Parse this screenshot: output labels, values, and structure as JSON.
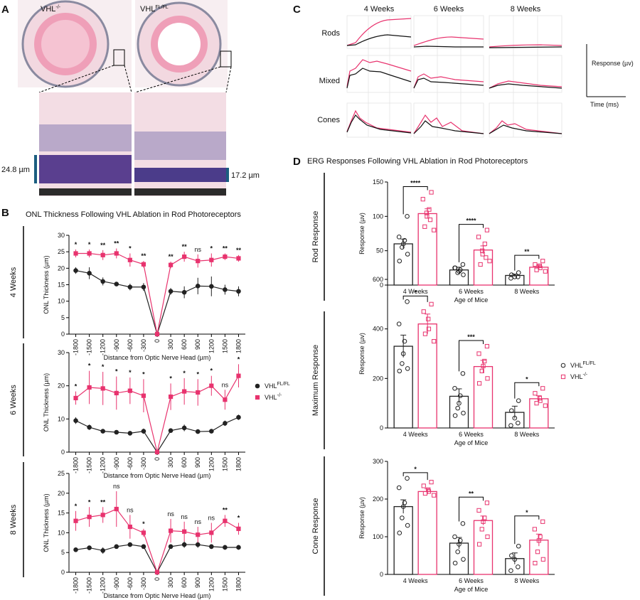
{
  "panel_labels": [
    "A",
    "B",
    "C",
    "D"
  ],
  "panel_a": {
    "left_label": "VHL",
    "left_sup": "-/-",
    "right_label": "VHL",
    "right_sup": "FL/FL",
    "left_thickness": "24.8 µm",
    "right_thickness": "17.2 µm"
  },
  "panel_b_title": "ONL Thickness Following VHL Ablation in Rod Photoreceptors",
  "panel_c": {
    "columns": [
      "4 Weeks",
      "6 Weeks",
      "8 Weeks"
    ],
    "rows": [
      "Rods",
      "Mixed",
      "Cones"
    ],
    "scale_y": "Response (µv)",
    "scale_x": "Time (ms)"
  },
  "panel_d_title": "ERG Responses Following VHL Ablation in Rod Photoreceptors",
  "chart_data": [
    {
      "type": "line",
      "label": "4 Weeks",
      "x_label": "Distance from Optic Nerve Head (µm)",
      "y_label": "ONL Thickness (µm)",
      "x": [
        -1800,
        -1500,
        -1200,
        -900,
        -600,
        -300,
        0,
        300,
        600,
        900,
        1200,
        1500,
        1800
      ],
      "xlim": [
        -1950,
        1950
      ],
      "xticks": [
        -1800,
        -1500,
        -1200,
        -900,
        -600,
        -300,
        0,
        300,
        600,
        900,
        1200,
        1500,
        1800
      ],
      "ylim": [
        0,
        30
      ],
      "yticks": [
        0,
        5,
        10,
        15,
        20,
        25,
        30
      ],
      "series": [
        {
          "name": "VHL",
          "sup": "FL/FL",
          "color": "#222222",
          "values": [
            19.3,
            18.5,
            16,
            15.2,
            14.3,
            14.3,
            0,
            13,
            12.7,
            14.6,
            14.5,
            13.5,
            13
          ],
          "errors": [
            1,
            1.8,
            1.2,
            0.5,
            1,
            1.2,
            0,
            1,
            1.8,
            2.5,
            3,
            1.5,
            1.5
          ]
        },
        {
          "name": "VHL",
          "sup": "-/-",
          "color": "#e8336e",
          "values": [
            24.5,
            24.5,
            24,
            24.5,
            22.5,
            21.2,
            0,
            21,
            23.5,
            22.2,
            22.5,
            23.5,
            23
          ],
          "errors": [
            1.2,
            1.2,
            1.5,
            1.5,
            2,
            1,
            0,
            1,
            1.5,
            2,
            2,
            1,
            1
          ]
        }
      ],
      "significance": [
        "*",
        "*",
        "**",
        "**",
        "*",
        "**",
        null,
        "**",
        "**",
        "ns",
        "*",
        "**",
        "**"
      ]
    },
    {
      "type": "line",
      "label": "6 Weeks",
      "x_label": "Distance from Optic Nerve Head (µm)",
      "y_label": "ONL Thickness (µm)",
      "x": [
        -1800,
        -1500,
        -1200,
        -900,
        -600,
        -300,
        0,
        300,
        600,
        900,
        1200,
        1500,
        1800
      ],
      "xlim": [
        -1950,
        1950
      ],
      "xticks": [
        -1800,
        -1500,
        -1200,
        -900,
        -600,
        -300,
        0,
        300,
        600,
        900,
        1200,
        1500,
        1800
      ],
      "ylim": [
        0,
        30
      ],
      "yticks": [
        0,
        10,
        20,
        30
      ],
      "series": [
        {
          "color": "#222222",
          "values": [
            9.5,
            7.5,
            6.3,
            6,
            5.7,
            6.3,
            0,
            6.5,
            7.3,
            6.2,
            6.3,
            8.7,
            10.5
          ],
          "errors": [
            1,
            0.8,
            0.6,
            0.5,
            0.6,
            0.8,
            0,
            0.5,
            1,
            0.5,
            0.5,
            0.8,
            0.8
          ]
        },
        {
          "color": "#e8336e",
          "values": [
            16.3,
            19.5,
            19.2,
            17.8,
            18.5,
            17,
            0,
            16.7,
            18.3,
            18,
            20,
            15.8,
            23
          ],
          "errors": [
            2,
            5,
            5,
            5,
            4,
            5,
            0,
            4,
            4,
            4,
            3,
            3,
            3.5
          ]
        }
      ],
      "significance": [
        "*",
        "*",
        "*",
        "*",
        "*",
        "*",
        null,
        "*",
        "*",
        "*",
        "*",
        "ns",
        "*"
      ]
    },
    {
      "type": "line",
      "label": "8 Weeks",
      "x_label": "Distance from Optic Nerve Head (µm)",
      "y_label": "ONL Thickness (µm)",
      "x": [
        -1800,
        -1500,
        -1200,
        -900,
        -600,
        -300,
        0,
        300,
        600,
        900,
        1200,
        1500,
        1800
      ],
      "xlim": [
        -1950,
        1950
      ],
      "xticks": [
        -1800,
        -1500,
        -1200,
        -900,
        -600,
        -300,
        0,
        300,
        600,
        900,
        1200,
        1500,
        1800
      ],
      "ylim": [
        0,
        25
      ],
      "yticks": [
        0,
        5,
        10,
        15,
        20,
        25
      ],
      "series": [
        {
          "color": "#222222",
          "values": [
            5.7,
            6.2,
            5.5,
            6.5,
            7,
            6.5,
            0,
            6.5,
            7,
            7,
            6.5,
            6.3,
            6.3
          ],
          "errors": [
            0.5,
            0.5,
            0.8,
            0.5,
            0.5,
            0.5,
            0,
            0.5,
            0.8,
            0.8,
            0.6,
            0.6,
            0.6
          ]
        },
        {
          "color": "#e8336e",
          "values": [
            13,
            14,
            14.5,
            16,
            11.5,
            10,
            0,
            10.5,
            10.3,
            9.5,
            10,
            13,
            11
          ],
          "errors": [
            2.5,
            2.5,
            2,
            4.5,
            3,
            1,
            0,
            3,
            2.5,
            2,
            2.5,
            1.5,
            1.5
          ]
        }
      ],
      "significance": [
        "*",
        "*",
        "**",
        "ns",
        "ns",
        "*",
        null,
        "ns",
        "ns",
        "ns",
        "ns",
        "**",
        "*"
      ]
    },
    {
      "type": "bar",
      "label": "Rod Response",
      "x_label": "Age of Mice",
      "y_label": "Response (µv)",
      "categories": [
        "4 Weeks",
        "6 Weeks",
        "8 Weeks"
      ],
      "ylim": [
        0,
        150
      ],
      "yticks": [
        0,
        50,
        100,
        150
      ],
      "series": [
        {
          "name": "VHL",
          "sup": "FL/FL",
          "color": "#222222",
          "values": [
            60,
            22,
            14
          ],
          "errors": [
            7,
            4,
            2
          ],
          "points": [
            [
              100,
              70,
              65,
              60,
              55,
              45,
              35
            ],
            [
              30,
              25,
              22,
              20,
              18,
              15,
              25
            ],
            [
              18,
              15,
              12,
              12,
              10
            ]
          ]
        },
        {
          "name": "VHL",
          "sup": "-/-",
          "color": "#e8336e",
          "values": [
            104,
            51,
            26
          ],
          "errors": [
            7,
            6,
            3
          ],
          "points": [
            [
              135,
              125,
              110,
              105,
              100,
              95,
              85,
              80
            ],
            [
              80,
              70,
              60,
              50,
              45,
              40,
              30,
              35
            ],
            [
              35,
              30,
              28,
              25,
              22,
              20
            ]
          ]
        }
      ],
      "significance": [
        "****",
        "****",
        "**"
      ]
    },
    {
      "type": "bar",
      "label": "Maximum Response",
      "x_label": "Age of Mice",
      "y_label": "Response (µv)",
      "categories": [
        "4 Weeks",
        "6 Weeks",
        "8 Weeks"
      ],
      "ylim": [
        0,
        600
      ],
      "yticks": [
        0,
        200,
        400,
        600
      ],
      "series": [
        {
          "color": "#222222",
          "values": [
            330,
            128,
            63
          ],
          "errors": [
            45,
            30,
            25
          ],
          "points": [
            [
              510,
              420,
              350,
              300,
              260,
              240,
              230
            ],
            [
              220,
              160,
              130,
              100,
              80,
              60,
              50
            ],
            [
              110,
              70,
              40,
              20,
              10
            ]
          ]
        },
        {
          "color": "#e8336e",
          "values": [
            420,
            248,
            118
          ],
          "errors": [
            40,
            25,
            12
          ],
          "points": [
            [
              500,
              470,
              440,
              400,
              380,
              350
            ],
            [
              330,
              300,
              270,
              250,
              230,
              200,
              180
            ],
            [
              160,
              140,
              120,
              110,
              100,
              90
            ]
          ]
        }
      ],
      "significance": [
        "*",
        "***",
        "*"
      ]
    },
    {
      "type": "bar",
      "label": "Cone Response",
      "x_label": "Age of Mice",
      "y_label": "Response (µv)",
      "categories": [
        "4 Weeks",
        "6 Weeks",
        "8 Weeks"
      ],
      "ylim": [
        0,
        300
      ],
      "yticks": [
        0,
        100,
        200,
        300
      ],
      "series": [
        {
          "color": "#222222",
          "values": [
            180,
            83,
            42
          ],
          "errors": [
            18,
            15,
            15
          ],
          "points": [
            [
              255,
              230,
              190,
              180,
              150,
              130,
              110
            ],
            [
              135,
              100,
              90,
              80,
              60,
              40,
              30
            ],
            [
              75,
              50,
              40,
              20,
              10
            ]
          ]
        },
        {
          "color": "#e8336e",
          "values": [
            220,
            143,
            91
          ],
          "errors": [
            7,
            12,
            16
          ],
          "points": [
            [
              245,
              235,
              225,
              220,
              215,
              210
            ],
            [
              190,
              170,
              150,
              140,
              120,
              100,
              80
            ],
            [
              140,
              120,
              100,
              90,
              60,
              40,
              30
            ]
          ]
        }
      ],
      "significance": [
        "*",
        "**",
        "*"
      ]
    }
  ]
}
